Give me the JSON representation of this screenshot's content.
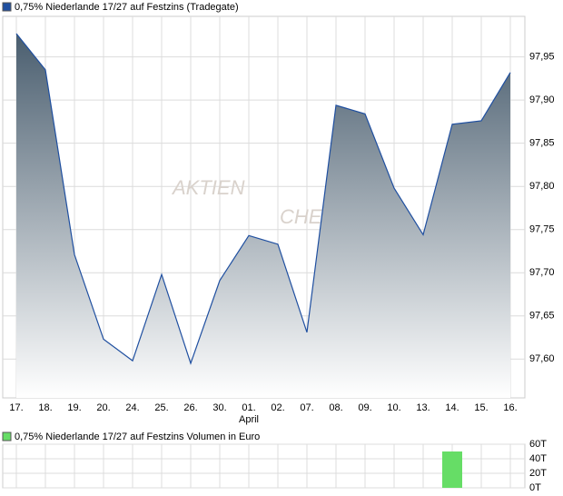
{
  "chart_data": [
    {
      "type": "area",
      "title": "0,75% Niederlande 17/27 auf Festzins (Tradegate)",
      "watermark": [
        "AKTIEN",
        "CHECK"
      ],
      "categories": [
        "17.",
        "18.",
        "19.",
        "20.",
        "24.",
        "25.",
        "26.",
        "30.",
        "01.",
        "02.",
        "07.",
        "08.",
        "09.",
        "10.",
        "13.",
        "14.",
        "15.",
        "16."
      ],
      "month_label": "April",
      "series": [
        {
          "name": "0,75% Niederlande 17/27 auf Festzins (Tradegate)",
          "color": "#1f4fa0",
          "values": [
            97.977,
            97.935,
            97.721,
            97.623,
            97.598,
            97.698,
            97.595,
            97.691,
            97.743,
            97.733,
            97.631,
            97.894,
            97.884,
            97.798,
            97.744,
            97.872,
            97.876,
            97.932
          ]
        }
      ],
      "ylim": [
        97.555,
        97.997
      ],
      "yticks": [
        {
          "value": 97.6,
          "label": "97,60"
        },
        {
          "value": 97.65,
          "label": "97,65"
        },
        {
          "value": 97.7,
          "label": "97,70"
        },
        {
          "value": 97.75,
          "label": "97,75"
        },
        {
          "value": 97.8,
          "label": "97,80"
        },
        {
          "value": 97.85,
          "label": "97,85"
        },
        {
          "value": 97.9,
          "label": "97,90"
        },
        {
          "value": 97.95,
          "label": "97,95"
        }
      ],
      "grid": true
    },
    {
      "type": "bar",
      "series": [
        {
          "name": "0,75% Niederlande 17/27 auf Festzins Volumen in Euro",
          "color": "#66dd66",
          "values": [
            0,
            0,
            0,
            0,
            0,
            0,
            0,
            0,
            0,
            0,
            0,
            0,
            0,
            0,
            0,
            50000,
            0,
            0
          ]
        }
      ],
      "ylim": [
        0,
        60000
      ],
      "yticks": [
        {
          "value": 0,
          "label": "0T"
        },
        {
          "value": 20000,
          "label": "20T"
        },
        {
          "value": 40000,
          "label": "40T"
        },
        {
          "value": 60000,
          "label": "60T"
        }
      ],
      "grid": true
    }
  ]
}
